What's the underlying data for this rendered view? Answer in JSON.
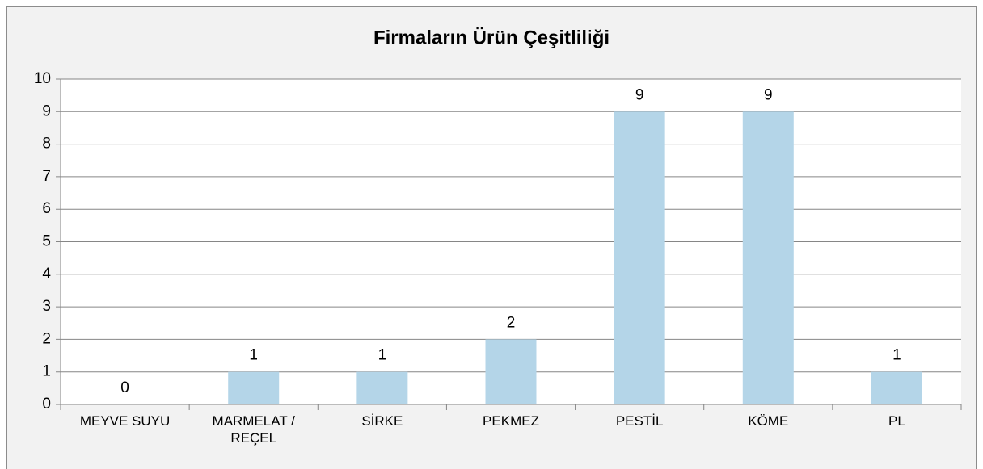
{
  "chart_data": {
    "type": "bar",
    "title": "Firmaların Ürün Çeşitliliği",
    "categories": [
      "MEYVE SUYU",
      "MARMELAT / REÇEL",
      "SİRKE",
      "PEKMEZ",
      "PESTİL",
      "KÖME",
      "PL"
    ],
    "values": [
      0,
      1,
      1,
      2,
      9,
      9,
      1
    ],
    "color": "#b4d5e8",
    "ylim": [
      0,
      10
    ],
    "yticks": [
      0,
      1,
      2,
      3,
      4,
      5,
      6,
      7,
      8,
      9,
      10
    ],
    "grid": true
  }
}
